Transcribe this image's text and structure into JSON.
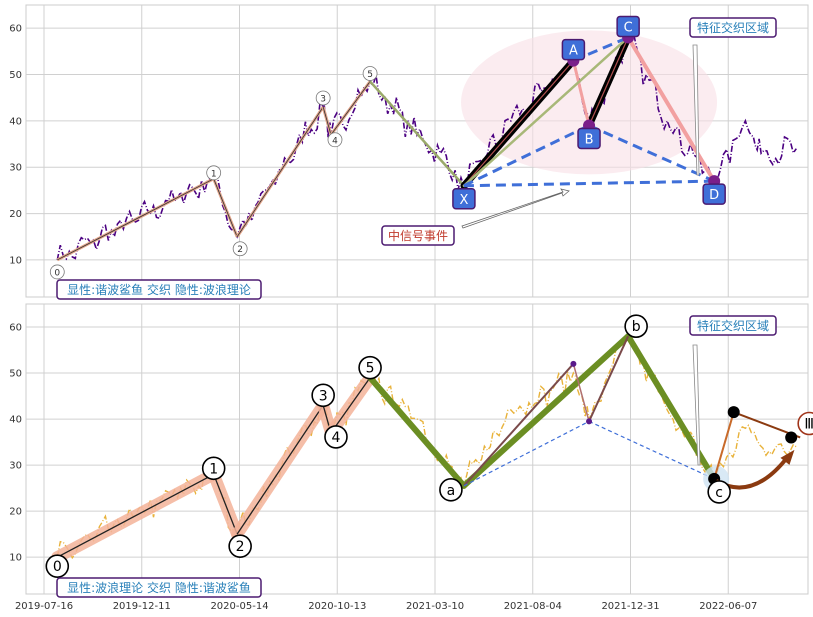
{
  "chart_data": [
    {
      "type": "line",
      "panel": "top",
      "ylim": [
        2,
        65
      ],
      "yticks": [
        10,
        20,
        30,
        40,
        50,
        60
      ],
      "xlim": [
        0,
        1
      ],
      "grid": true,
      "price_series": {
        "name": "",
        "color": "#4b0082",
        "style": "dash-dot"
      },
      "wave_points": [
        {
          "label": "0",
          "x": 0.04,
          "y": 10
        },
        {
          "label": "1",
          "x": 0.24,
          "y": 27.5
        },
        {
          "label": "2",
          "x": 0.27,
          "y": 15
        },
        {
          "label": "3",
          "x": 0.38,
          "y": 43
        },
        {
          "label": "4",
          "x": 0.39,
          "y": 37
        },
        {
          "label": "5",
          "x": 0.44,
          "y": 48.5
        },
        {
          "label": "X",
          "x": 0.56,
          "y": 26
        },
        {
          "label": "A",
          "x": 0.7,
          "y": 53
        },
        {
          "label": "B",
          "x": 0.72,
          "y": 39
        },
        {
          "label": "C",
          "x": 0.77,
          "y": 58
        },
        {
          "label": "D",
          "x": 0.88,
          "y": 27
        }
      ],
      "annotations": {
        "event": "中信号事件",
        "feature": "特征交织区域",
        "legend_box": "显性:谐波鲨鱼 交织 隐性:波浪理论"
      }
    },
    {
      "type": "line",
      "panel": "bottom",
      "ylim": [
        2,
        65
      ],
      "yticks": [
        10,
        20,
        30,
        40,
        50,
        60
      ],
      "xlim": [
        0,
        1
      ],
      "grid": true,
      "price_series": {
        "name": "",
        "color": "#e8b23a",
        "style": "dash-dot"
      },
      "x_tick_labels": [
        "2019-07-16",
        "2019-12-11",
        "2020-05-14",
        "2020-10-13",
        "2021-03-10",
        "2021-08-04",
        "2021-12-31",
        "2022-06-07"
      ],
      "wave_points": [
        {
          "label": "0",
          "x": 0.04,
          "y": 10
        },
        {
          "label": "1",
          "x": 0.24,
          "y": 28
        },
        {
          "label": "2",
          "x": 0.27,
          "y": 15
        },
        {
          "label": "3",
          "x": 0.38,
          "y": 43
        },
        {
          "label": "4",
          "x": 0.39,
          "y": 37
        },
        {
          "label": "5",
          "x": 0.44,
          "y": 49
        },
        {
          "label": "a",
          "x": 0.56,
          "y": 25.5
        },
        {
          "label": "b",
          "x": 0.77,
          "y": 58
        },
        {
          "label": "c",
          "x": 0.88,
          "y": 27
        },
        {
          "label": "Ⅲ",
          "x": 0.99,
          "y": 36
        }
      ],
      "harmonic_points": [
        {
          "x": 0.7,
          "y": 52
        },
        {
          "x": 0.72,
          "y": 39.5
        }
      ],
      "annotations": {
        "feature": "特征交织区域",
        "legend_box": "显性:波浪理论 交织 隐性:谐波鲨鱼"
      }
    }
  ]
}
